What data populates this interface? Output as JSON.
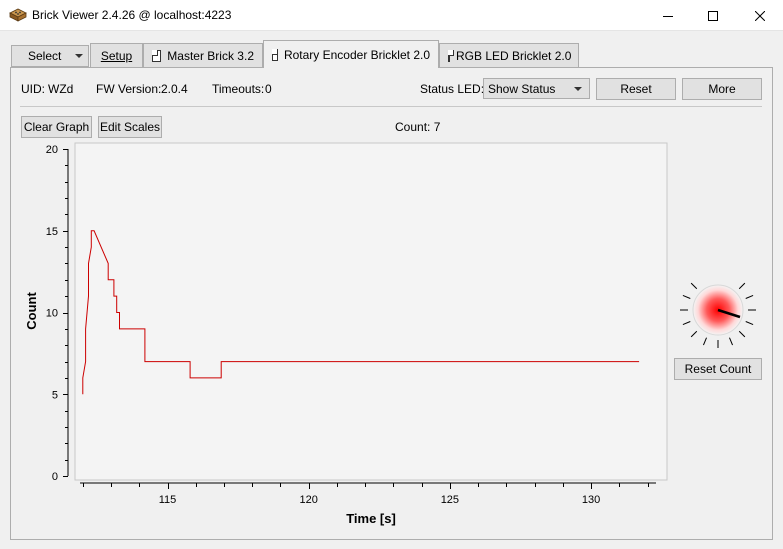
{
  "window": {
    "title": "Brick Viewer 2.4.26 @ localhost:4223"
  },
  "tabs": {
    "select_label": "Select",
    "items": [
      {
        "label": "Setup"
      },
      {
        "label": "Master Brick 3.2"
      },
      {
        "label": "Rotary Encoder Bricklet 2.0"
      },
      {
        "label": "RGB LED Bricklet 2.0"
      }
    ],
    "active_index": 2
  },
  "info": {
    "uid_label": "UID:",
    "uid_value": "WZd",
    "fw_label": "FW Version:",
    "fw_value": "2.0.4",
    "timeouts_label": "Timeouts:",
    "timeouts_value": "0",
    "status_led_label": "Status LED:",
    "status_led_value": "Show Status",
    "reset_label": "Reset",
    "more_label": "More"
  },
  "toolbar": {
    "clear_graph_label": "Clear Graph",
    "edit_scales_label": "Edit Scales",
    "count_text": "Count: 7"
  },
  "knob": {
    "reset_count_label": "Reset Count",
    "color": "#ff0000"
  },
  "chart_data": {
    "type": "line",
    "xlabel": "Time [s]",
    "ylabel": "Count",
    "xlim": [
      111.9,
      132.3
    ],
    "ylim": [
      0,
      20
    ],
    "xticks": [
      115,
      120,
      125,
      130
    ],
    "yticks": [
      0,
      5,
      10,
      15,
      20
    ],
    "grid": false,
    "series": [
      {
        "color": "#cc0000",
        "x": [
          112.0,
          112.0,
          112.1,
          112.1,
          112.2,
          112.2,
          112.3,
          112.3,
          112.4,
          112.4,
          112.9,
          112.9,
          113.1,
          113.1,
          113.2,
          113.2,
          113.3,
          113.3,
          113.4,
          113.4,
          113.6,
          113.6,
          114.2,
          114.2,
          115.8,
          115.8,
          116.9,
          116.9,
          131.7
        ],
        "y": [
          5,
          6,
          7,
          9,
          11,
          13,
          14,
          15,
          15,
          15,
          13,
          12,
          12,
          11,
          11,
          10,
          10,
          9,
          9,
          9,
          9,
          9,
          9,
          7,
          7,
          6,
          6,
          7,
          7
        ]
      }
    ]
  }
}
